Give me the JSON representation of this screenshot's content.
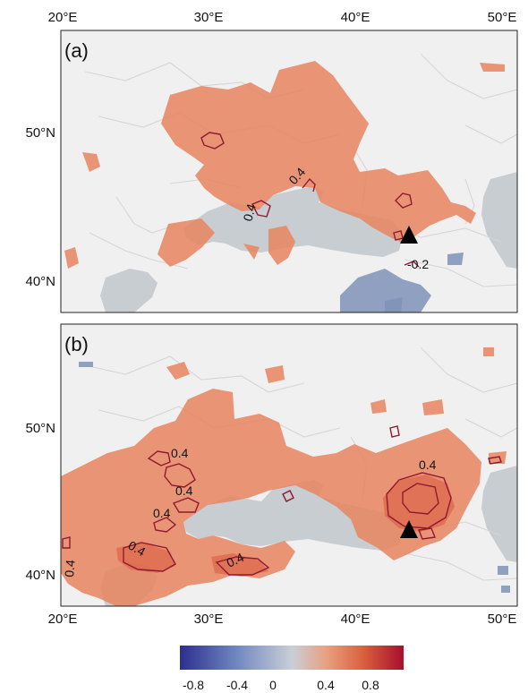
{
  "x_ticks": [
    "20°E",
    "30°E",
    "40°E",
    "50°E"
  ],
  "y_ticks": [
    "50°N",
    "40°N"
  ],
  "panels": [
    {
      "label": "(a)",
      "contour_labels": [
        "0.4",
        "0.4",
        "-0.2"
      ]
    },
    {
      "label": "(b)",
      "contour_labels": [
        "0.4",
        "0.4",
        "0.4",
        "0.4",
        "0.4",
        "0.4",
        "0.4"
      ]
    }
  ],
  "colorbar": {
    "ticks": [
      "-0.8",
      "-0.4",
      "0",
      "0.4",
      "0.8"
    ],
    "range": [
      -1.0,
      1.0
    ],
    "colors": [
      "#2c2f8e",
      "#6f86c0",
      "#c9cfd8",
      "#e8a283",
      "#d9603f",
      "#a80e2c"
    ]
  },
  "colors": {
    "land": "#f0f0f0",
    "water": "#c8cdd2",
    "border": "#d7d7d7",
    "positive": "#e8855f",
    "strong": "#d9553c",
    "negative": "#7f92b7",
    "contour": "#8e1932",
    "marker": "#000000"
  }
}
